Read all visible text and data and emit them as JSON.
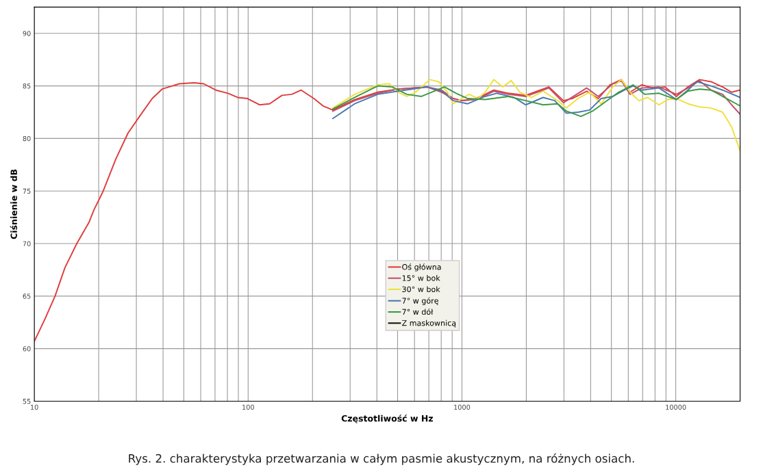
{
  "chart_data": {
    "type": "line",
    "xlabel": "Częstotliwość w Hz",
    "ylabel": "Ciśnienie w dB",
    "annotations": [
      "Rys. 2. charakterystyka przetwarzania w całym pasmie akustycznym, na różnych osiach."
    ],
    "log": "x",
    "xlim": [
      10,
      20000
    ],
    "xticks": [
      10,
      100,
      1000,
      10000
    ],
    "ylim": [
      55,
      92.5
    ],
    "yticks": [
      55,
      60,
      65,
      70,
      75,
      80,
      85,
      90
    ],
    "grid": true,
    "legend": "bottom",
    "marker": "none",
    "line_style": "solid",
    "series": [
      {
        "name": "Oś główna",
        "color": "#e03c3c",
        "x": [
          10,
          11.2,
          12.5,
          13.9,
          15.8,
          18,
          19,
          21,
          24,
          27.4,
          31.3,
          35.6,
          39.6,
          47.6,
          55.8,
          62,
          70.6,
          80.5,
          89.3,
          99.3,
          113,
          126,
          144,
          160,
          177,
          203,
          224,
          249,
          315,
          404,
          503,
          687,
          804,
          910,
          1000,
          1133,
          1284,
          1410,
          1648,
          1987,
          2253,
          2551,
          2983,
          3277,
          3830,
          4342,
          4918,
          5571,
          6117,
          6929,
          7848,
          8889,
          10069,
          11400,
          12920,
          14630,
          16570,
          18250,
          20000
        ],
        "values": [
          60.7,
          62.8,
          65.0,
          67.7,
          70.0,
          72.0,
          73.2,
          75.0,
          78.0,
          80.5,
          82.2,
          83.8,
          84.7,
          85.2,
          85.3,
          85.2,
          84.6,
          84.3,
          83.9,
          83.8,
          83.2,
          83.3,
          84.1,
          84.2,
          84.6,
          83.8,
          83.1,
          82.7,
          83.7,
          84.4,
          84.7,
          84.9,
          84.4,
          83.8,
          83.6,
          83.7,
          84.2,
          84.6,
          84.3,
          84.1,
          84.5,
          84.9,
          83.6,
          83.8,
          84.5,
          83.8,
          85.1,
          85.6,
          84.4,
          85.1,
          84.8,
          84.9,
          84.0,
          84.9,
          85.6,
          85.4,
          84.9,
          84.4,
          84.6
        ]
      },
      {
        "name": "15° w bok",
        "color": "#c0506a",
        "x": [
          249,
          315,
          404,
          503,
          687,
          804,
          910,
          1000,
          1133,
          1284,
          1410,
          1648,
          1987,
          2253,
          2551,
          2983,
          3830,
          4342,
          5077,
          5571,
          6117,
          6929,
          8350,
          10069,
          11400,
          12920,
          14630,
          16570,
          18250,
          20000
        ],
        "values": [
          82.6,
          83.6,
          84.3,
          84.7,
          84.9,
          84.6,
          83.8,
          83.6,
          83.7,
          84.1,
          84.5,
          84.2,
          84.0,
          84.4,
          84.8,
          83.4,
          84.8,
          84.0,
          85.2,
          85.5,
          84.2,
          84.8,
          84.9,
          84.2,
          84.8,
          85.5,
          84.6,
          84.2,
          83.2,
          82.3
        ]
      },
      {
        "name": "30° w bok",
        "color": "#f0e03c",
        "x": [
          249,
          315,
          404,
          458,
          503,
          552,
          607,
          708,
          779,
          855,
          910,
          1000,
          1081,
          1188,
          1284,
          1410,
          1549,
          1700,
          1867,
          2116,
          2398,
          2804,
          3081,
          3490,
          3955,
          4482,
          5077,
          5571,
          6117,
          6719,
          7380,
          8350,
          9170,
          10069,
          11400,
          12920,
          14630,
          16570,
          18250,
          20000
        ],
        "values": [
          82.9,
          84.2,
          85.1,
          85.2,
          84.4,
          84.0,
          84.4,
          85.6,
          85.4,
          84.4,
          83.3,
          83.8,
          84.2,
          83.8,
          84.4,
          85.6,
          84.9,
          85.5,
          84.4,
          83.9,
          84.5,
          83.6,
          82.9,
          83.8,
          84.4,
          83.3,
          84.9,
          85.6,
          84.4,
          83.6,
          83.9,
          83.2,
          83.7,
          83.8,
          83.3,
          83.0,
          82.9,
          82.5,
          81.1,
          78.8
        ]
      },
      {
        "name": "7° w górę",
        "color": "#4a78b0",
        "x": [
          249,
          315,
          404,
          503,
          687,
          804,
          910,
          1064,
          1284,
          1454,
          1753,
          1987,
          2398,
          2716,
          3081,
          3490,
          3955,
          4482,
          5077,
          5753,
          6315,
          6929,
          8350,
          10069,
          11400,
          12540,
          14630,
          16570,
          20000
        ],
        "values": [
          81.9,
          83.3,
          84.2,
          84.5,
          84.9,
          84.5,
          83.6,
          83.3,
          84.0,
          84.3,
          83.9,
          83.2,
          83.9,
          83.6,
          82.4,
          82.5,
          82.7,
          83.8,
          84.0,
          84.6,
          85.0,
          84.6,
          84.8,
          83.7,
          84.6,
          85.4,
          85.0,
          84.6,
          83.9
        ]
      },
      {
        "name": "7° w dół",
        "color": "#3a9a44",
        "x": [
          249,
          315,
          404,
          472,
          552,
          646,
          829,
          939,
          1064,
          1284,
          1648,
          1987,
          2398,
          2804,
          3081,
          3600,
          4081,
          4623,
          5405,
          6315,
          7150,
          8350,
          10069,
          11400,
          12920,
          14630,
          16570,
          20000
        ],
        "values": [
          82.8,
          83.9,
          85.0,
          84.9,
          84.2,
          84.0,
          84.9,
          84.3,
          83.8,
          83.7,
          84.0,
          83.6,
          83.2,
          83.3,
          82.6,
          82.1,
          82.6,
          83.4,
          84.4,
          85.1,
          84.2,
          84.3,
          83.7,
          84.5,
          84.7,
          84.6,
          84.0,
          83.1
        ]
      },
      {
        "name": "Z maskownicą",
        "color": "#111111"
      }
    ]
  }
}
